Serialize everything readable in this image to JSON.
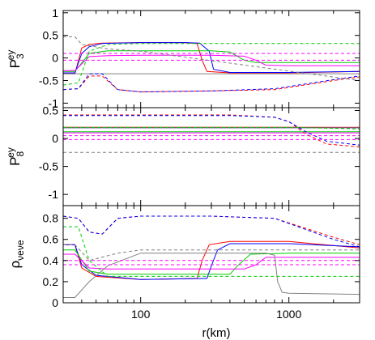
{
  "chart_data": [
    {
      "type": "line",
      "ylabel": "P3ey",
      "ylabel_main": "P",
      "ylabel_sub": "3",
      "ylabel_sup": "ey",
      "xlim": [
        30,
        3000
      ],
      "xscale": "log",
      "ylim": [
        -1.1,
        1.05
      ],
      "yticks": [
        -1,
        -0.5,
        0,
        0.5,
        1
      ],
      "ytick_labels": [
        "-1",
        "-0.5",
        "0",
        "0.5",
        "1"
      ],
      "grid": false,
      "series": [
        {
          "color": "#ff0000",
          "dash": false,
          "points": [
            [
              30,
              -0.35
            ],
            [
              36,
              -0.35
            ],
            [
              40,
              0.22
            ],
            [
              45,
              0.3
            ],
            [
              55,
              0.33
            ],
            [
              100,
              0.34
            ],
            [
              200,
              0.34
            ],
            [
              240,
              0.32
            ],
            [
              260,
              -0.05
            ],
            [
              280,
              -0.3
            ],
            [
              400,
              -0.33
            ],
            [
              1000,
              -0.33
            ],
            [
              3000,
              -0.3
            ]
          ]
        },
        {
          "color": "#0000ff",
          "dash": false,
          "points": [
            [
              30,
              -0.33
            ],
            [
              36,
              -0.33
            ],
            [
              40,
              0.1
            ],
            [
              45,
              0.25
            ],
            [
              55,
              0.32
            ],
            [
              100,
              0.34
            ],
            [
              200,
              0.34
            ],
            [
              250,
              0.33
            ],
            [
              290,
              0.15
            ],
            [
              310,
              -0.25
            ],
            [
              400,
              -0.32
            ],
            [
              1000,
              -0.32
            ],
            [
              3000,
              -0.3
            ]
          ]
        },
        {
          "color": "#00cc00",
          "dash": false,
          "points": [
            [
              30,
              -0.3
            ],
            [
              36,
              -0.3
            ],
            [
              45,
              0.1
            ],
            [
              60,
              0.16
            ],
            [
              100,
              0.16
            ],
            [
              300,
              0.16
            ],
            [
              400,
              0.13
            ],
            [
              500,
              -0.05
            ],
            [
              600,
              -0.1
            ],
            [
              1000,
              -0.1
            ],
            [
              3000,
              -0.1
            ]
          ]
        },
        {
          "color": "#ff00ff",
          "dash": false,
          "points": [
            [
              30,
              -0.28
            ],
            [
              36,
              -0.28
            ],
            [
              45,
              0.03
            ],
            [
              60,
              0.05
            ],
            [
              100,
              0.06
            ],
            [
              300,
              0.06
            ],
            [
              500,
              0.04
            ],
            [
              600,
              -0.05
            ],
            [
              700,
              -0.16
            ],
            [
              1000,
              -0.17
            ],
            [
              3000,
              -0.17
            ]
          ]
        },
        {
          "color": "#808080",
          "dash": false,
          "points": [
            [
              30,
              -0.35
            ],
            [
              36,
              -0.35
            ],
            [
              40,
              -0.35
            ],
            [
              3000,
              -0.35
            ]
          ]
        },
        {
          "color": "#ff0000",
          "dash": true,
          "points": [
            [
              30,
              -0.7
            ],
            [
              38,
              -0.68
            ],
            [
              45,
              -0.4
            ],
            [
              55,
              -0.4
            ],
            [
              70,
              -0.7
            ],
            [
              100,
              -0.75
            ],
            [
              300,
              -0.73
            ],
            [
              800,
              -0.7
            ],
            [
              2000,
              -0.5
            ],
            [
              3000,
              -0.42
            ]
          ]
        },
        {
          "color": "#0000ff",
          "dash": true,
          "points": [
            [
              30,
              -0.7
            ],
            [
              38,
              -0.68
            ],
            [
              45,
              -0.35
            ],
            [
              55,
              -0.35
            ],
            [
              70,
              -0.7
            ],
            [
              100,
              -0.75
            ],
            [
              300,
              -0.73
            ],
            [
              800,
              -0.68
            ],
            [
              2000,
              -0.48
            ],
            [
              3000,
              -0.4
            ]
          ]
        },
        {
          "color": "#00cc00",
          "dash": true,
          "points": [
            [
              30,
              -0.6
            ],
            [
              38,
              -0.55
            ],
            [
              45,
              0.15
            ],
            [
              60,
              0.3
            ],
            [
              100,
              0.32
            ],
            [
              3000,
              0.32
            ]
          ]
        },
        {
          "color": "#ff00ff",
          "dash": true,
          "points": [
            [
              30,
              -0.05
            ],
            [
              3000,
              -0.05
            ]
          ]
        },
        {
          "color": "#ff00ff",
          "dash": true,
          "points": [
            [
              30,
              0.1
            ],
            [
              3000,
              0.1
            ]
          ]
        },
        {
          "color": "#808080",
          "dash": true,
          "points": [
            [
              30,
              0.47
            ],
            [
              36,
              0.47
            ],
            [
              40,
              0.3
            ],
            [
              60,
              0.2
            ],
            [
              100,
              0.15
            ],
            [
              3000,
              -0.5
            ]
          ]
        }
      ]
    },
    {
      "type": "line",
      "ylabel": "P8ey",
      "ylabel_main": "P",
      "ylabel_sub": "8",
      "ylabel_sup": "ey",
      "xlim": [
        30,
        3000
      ],
      "xscale": "log",
      "ylim": [
        -1.2,
        0.55
      ],
      "yticks": [
        -1,
        -0.5,
        0,
        0.5
      ],
      "ytick_labels": [
        "-1",
        "-0.5",
        "0",
        "0.5"
      ],
      "grid": false,
      "series": [
        {
          "color": "#ff0000",
          "dash": false,
          "points": [
            [
              30,
              0.2
            ],
            [
              3000,
              0.2
            ]
          ]
        },
        {
          "color": "#0000ff",
          "dash": false,
          "points": [
            [
              30,
              0.19
            ],
            [
              3000,
              0.19
            ]
          ]
        },
        {
          "color": "#00cc00",
          "dash": false,
          "points": [
            [
              30,
              0.12
            ],
            [
              3000,
              0.12
            ]
          ]
        },
        {
          "color": "#ff00ff",
          "dash": false,
          "points": [
            [
              30,
              0.1
            ],
            [
              3000,
              0.1
            ]
          ]
        },
        {
          "color": "#808080",
          "dash": false,
          "points": [
            [
              30,
              0.19
            ],
            [
              3000,
              0.19
            ]
          ]
        },
        {
          "color": "#ff0000",
          "dash": true,
          "points": [
            [
              30,
              0.42
            ],
            [
              400,
              0.42
            ],
            [
              800,
              0.38
            ],
            [
              1000,
              0.3
            ],
            [
              1300,
              0.08
            ],
            [
              1800,
              -0.1
            ],
            [
              3000,
              -0.15
            ]
          ]
        },
        {
          "color": "#0000ff",
          "dash": true,
          "points": [
            [
              30,
              0.41
            ],
            [
              400,
              0.41
            ],
            [
              800,
              0.38
            ],
            [
              1000,
              0.3
            ],
            [
              1300,
              0.12
            ],
            [
              1800,
              -0.05
            ],
            [
              3000,
              -0.12
            ]
          ]
        },
        {
          "color": "#00cc00",
          "dash": true,
          "points": [
            [
              30,
              0.2
            ],
            [
              1000,
              0.2
            ],
            [
              3000,
              0.17
            ]
          ]
        },
        {
          "color": "#ff00ff",
          "dash": true,
          "points": [
            [
              30,
              0.05
            ],
            [
              3000,
              0.05
            ]
          ]
        },
        {
          "color": "#ff00ff",
          "dash": true,
          "points": [
            [
              30,
              -0.02
            ],
            [
              3000,
              -0.02
            ]
          ]
        },
        {
          "color": "#808080",
          "dash": true,
          "points": [
            [
              30,
              -0.25
            ],
            [
              3000,
              -0.25
            ]
          ]
        }
      ]
    },
    {
      "type": "line",
      "ylabel": "ρνeνe",
      "ylabel_main": "ρ",
      "ylabel_sub": "νeνe",
      "xlabel": "r(km)",
      "xlim": [
        30,
        3000
      ],
      "xscale": "log",
      "xticks": [
        100,
        1000
      ],
      "xtick_labels": [
        "100",
        "1000"
      ],
      "ylim": [
        0.0,
        0.92
      ],
      "yticks": [
        0,
        0.2,
        0.4,
        0.6,
        0.8
      ],
      "ytick_labels": [
        "0",
        "0.2",
        "0.4",
        "0.6",
        "0.8"
      ],
      "grid": false,
      "series": [
        {
          "color": "#ff0000",
          "dash": false,
          "points": [
            [
              30,
              0.55
            ],
            [
              36,
              0.55
            ],
            [
              40,
              0.33
            ],
            [
              50,
              0.25
            ],
            [
              100,
              0.22
            ],
            [
              240,
              0.23
            ],
            [
              260,
              0.4
            ],
            [
              290,
              0.55
            ],
            [
              400,
              0.58
            ],
            [
              1000,
              0.58
            ],
            [
              3000,
              0.52
            ]
          ]
        },
        {
          "color": "#0000ff",
          "dash": false,
          "points": [
            [
              30,
              0.55
            ],
            [
              36,
              0.55
            ],
            [
              40,
              0.36
            ],
            [
              50,
              0.26
            ],
            [
              100,
              0.22
            ],
            [
              280,
              0.23
            ],
            [
              300,
              0.35
            ],
            [
              330,
              0.5
            ],
            [
              400,
              0.56
            ],
            [
              1000,
              0.56
            ],
            [
              3000,
              0.53
            ]
          ]
        },
        {
          "color": "#00cc00",
          "dash": false,
          "points": [
            [
              30,
              0.5
            ],
            [
              36,
              0.5
            ],
            [
              45,
              0.3
            ],
            [
              60,
              0.27
            ],
            [
              100,
              0.27
            ],
            [
              400,
              0.27
            ],
            [
              450,
              0.35
            ],
            [
              550,
              0.46
            ],
            [
              1000,
              0.47
            ],
            [
              3000,
              0.47
            ]
          ]
        },
        {
          "color": "#ff00ff",
          "dash": false,
          "points": [
            [
              30,
              0.46
            ],
            [
              36,
              0.46
            ],
            [
              45,
              0.33
            ],
            [
              60,
              0.32
            ],
            [
              100,
              0.32
            ],
            [
              500,
              0.32
            ],
            [
              600,
              0.36
            ],
            [
              700,
              0.43
            ],
            [
              1000,
              0.43
            ],
            [
              3000,
              0.43
            ]
          ]
        },
        {
          "color": "#808080",
          "dash": false,
          "points": [
            [
              30,
              0.05
            ],
            [
              36,
              0.05
            ],
            [
              45,
              0.2
            ],
            [
              60,
              0.35
            ],
            [
              100,
              0.47
            ],
            [
              700,
              0.47
            ],
            [
              800,
              0.45
            ],
            [
              840,
              0.2
            ],
            [
              900,
              0.1
            ],
            [
              1000,
              0.09
            ],
            [
              3000,
              0.08
            ]
          ]
        },
        {
          "color": "#ff0000",
          "dash": true,
          "points": [
            [
              30,
              0.82
            ],
            [
              38,
              0.8
            ],
            [
              45,
              0.67
            ],
            [
              55,
              0.65
            ],
            [
              70,
              0.8
            ],
            [
              100,
              0.82
            ],
            [
              300,
              0.82
            ],
            [
              800,
              0.8
            ],
            [
              2000,
              0.62
            ],
            [
              3000,
              0.55
            ]
          ]
        },
        {
          "color": "#0000ff",
          "dash": true,
          "points": [
            [
              30,
              0.82
            ],
            [
              38,
              0.8
            ],
            [
              45,
              0.67
            ],
            [
              55,
              0.65
            ],
            [
              70,
              0.8
            ],
            [
              100,
              0.82
            ],
            [
              300,
              0.82
            ],
            [
              800,
              0.8
            ],
            [
              2000,
              0.6
            ],
            [
              3000,
              0.53
            ]
          ]
        },
        {
          "color": "#00cc00",
          "dash": true,
          "points": [
            [
              30,
              0.72
            ],
            [
              38,
              0.72
            ],
            [
              45,
              0.4
            ],
            [
              60,
              0.25
            ],
            [
              100,
              0.25
            ],
            [
              3000,
              0.25
            ]
          ]
        },
        {
          "color": "#ff00ff",
          "dash": true,
          "points": [
            [
              30,
              0.4
            ],
            [
              3000,
              0.4
            ]
          ]
        },
        {
          "color": "#ff00ff",
          "dash": true,
          "points": [
            [
              30,
              0.36
            ],
            [
              3000,
              0.36
            ]
          ]
        },
        {
          "color": "#808080",
          "dash": true,
          "points": [
            [
              30,
              0.55
            ],
            [
              36,
              0.55
            ],
            [
              45,
              0.4
            ],
            [
              70,
              0.47
            ],
            [
              100,
              0.5
            ],
            [
              3000,
              0.5
            ]
          ]
        }
      ]
    }
  ]
}
